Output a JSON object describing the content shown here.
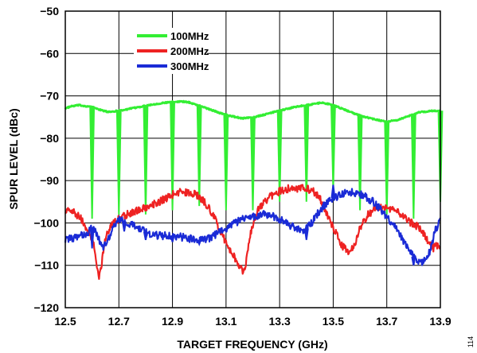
{
  "figure_id": "114",
  "chart_data": {
    "type": "line",
    "xlabel": "TARGET FREQUENCY (GHz)",
    "ylabel": "SPUR LEVEL (dBc)",
    "xlim": [
      12.5,
      13.9
    ],
    "ylim": [
      -120,
      -50
    ],
    "xticks": [
      "12.5",
      "12.7",
      "12.9",
      "13.1",
      "13.3",
      "13.5",
      "13.7",
      "13.9"
    ],
    "yticks": [
      "−50",
      "−60",
      "−70",
      "−80",
      "−90",
      "−100",
      "−110",
      "−120"
    ],
    "grid": true,
    "legend_position": "top-left",
    "series": [
      {
        "name": "100MHz",
        "color": "#33ee33",
        "baseline": [
          [
            12.5,
            -73
          ],
          [
            12.52,
            -72.5
          ],
          [
            12.55,
            -72.2
          ],
          [
            12.6,
            -72.6
          ],
          [
            12.63,
            -73.3
          ],
          [
            12.66,
            -73.8
          ],
          [
            12.7,
            -73.5
          ],
          [
            12.73,
            -73.2
          ],
          [
            12.77,
            -72.7
          ],
          [
            12.81,
            -72.2
          ],
          [
            12.85,
            -71.8
          ],
          [
            12.89,
            -71.5
          ],
          [
            12.93,
            -71.3
          ],
          [
            12.96,
            -71.5
          ],
          [
            13.0,
            -72.3
          ],
          [
            13.04,
            -73.2
          ],
          [
            13.08,
            -74.1
          ],
          [
            13.12,
            -74.8
          ],
          [
            13.16,
            -75.3
          ],
          [
            13.2,
            -75.1
          ],
          [
            13.24,
            -74.5
          ],
          [
            13.28,
            -73.8
          ],
          [
            13.32,
            -73.2
          ],
          [
            13.36,
            -72.6
          ],
          [
            13.4,
            -72.2
          ],
          [
            13.44,
            -71.8
          ],
          [
            13.46,
            -71.6
          ],
          [
            13.5,
            -72.2
          ],
          [
            13.54,
            -73.2
          ],
          [
            13.58,
            -74.2
          ],
          [
            13.62,
            -75.0
          ],
          [
            13.66,
            -75.6
          ],
          [
            13.7,
            -76.1
          ],
          [
            13.74,
            -75.7
          ],
          [
            13.78,
            -74.8
          ],
          [
            13.82,
            -73.9
          ],
          [
            13.86,
            -73.6
          ],
          [
            13.9,
            -73.5
          ]
        ],
        "dips": [
          [
            12.6,
            -99
          ],
          [
            12.7,
            -98
          ],
          [
            12.8,
            -98
          ],
          [
            12.9,
            -97
          ],
          [
            13.0,
            -96
          ],
          [
            13.1,
            -97
          ],
          [
            13.2,
            -97
          ],
          [
            13.3,
            -95
          ],
          [
            13.4,
            -95
          ],
          [
            13.5,
            -92
          ],
          [
            13.6,
            -97
          ],
          [
            13.7,
            -98
          ],
          [
            13.8,
            -99
          ],
          [
            13.9,
            -95
          ]
        ]
      },
      {
        "name": "200MHz",
        "color": "#ee2222",
        "baseline": [
          [
            12.5,
            -97
          ],
          [
            12.53,
            -97.5
          ],
          [
            12.56,
            -99
          ],
          [
            12.59,
            -102.5
          ],
          [
            12.61,
            -106
          ],
          [
            12.62,
            -111
          ],
          [
            12.625,
            -113.5
          ],
          [
            12.635,
            -110
          ],
          [
            12.645,
            -105
          ],
          [
            12.66,
            -102
          ],
          [
            12.68,
            -100
          ],
          [
            12.7,
            -99
          ],
          [
            12.73,
            -98
          ],
          [
            12.77,
            -97
          ],
          [
            12.81,
            -96
          ],
          [
            12.85,
            -95
          ],
          [
            12.88,
            -94
          ],
          [
            12.91,
            -93
          ],
          [
            12.94,
            -92.6
          ],
          [
            12.98,
            -93
          ],
          [
            13.02,
            -95
          ],
          [
            13.05,
            -98
          ],
          [
            13.08,
            -102
          ],
          [
            13.11,
            -106
          ],
          [
            13.14,
            -109
          ],
          [
            13.165,
            -111.5
          ],
          [
            13.175,
            -109
          ],
          [
            13.19,
            -103
          ],
          [
            13.22,
            -97
          ],
          [
            13.26,
            -94
          ],
          [
            13.3,
            -92.5
          ],
          [
            13.34,
            -91.8
          ],
          [
            13.38,
            -91.8
          ],
          [
            13.42,
            -92.2
          ],
          [
            13.45,
            -94
          ],
          [
            13.47,
            -97
          ],
          [
            13.5,
            -101
          ],
          [
            13.53,
            -105
          ],
          [
            13.555,
            -107
          ],
          [
            13.575,
            -106
          ],
          [
            13.6,
            -101
          ],
          [
            13.63,
            -98
          ],
          [
            13.66,
            -96.5
          ],
          [
            13.7,
            -96.3
          ],
          [
            13.74,
            -97.5
          ],
          [
            13.78,
            -99.5
          ],
          [
            13.82,
            -101
          ],
          [
            13.85,
            -104
          ],
          [
            13.87,
            -106
          ],
          [
            13.9,
            -105
          ]
        ],
        "dips": []
      },
      {
        "name": "300MHz",
        "color": "#1a2bd6",
        "baseline": [
          [
            12.5,
            -104
          ],
          [
            12.54,
            -103.5
          ],
          [
            12.58,
            -102.5
          ],
          [
            12.6,
            -101
          ],
          [
            12.62,
            -103
          ],
          [
            12.64,
            -106
          ],
          [
            12.66,
            -104
          ],
          [
            12.68,
            -101
          ],
          [
            12.7,
            -99
          ],
          [
            12.73,
            -100
          ],
          [
            12.77,
            -101
          ],
          [
            12.81,
            -102.5
          ],
          [
            12.85,
            -103
          ],
          [
            12.9,
            -103
          ],
          [
            12.95,
            -103.5
          ],
          [
            13.0,
            -104
          ],
          [
            13.04,
            -103.5
          ],
          [
            13.08,
            -102
          ],
          [
            13.12,
            -100.5
          ],
          [
            13.16,
            -99
          ],
          [
            13.2,
            -98.5
          ],
          [
            13.24,
            -98
          ],
          [
            13.28,
            -98.5
          ],
          [
            13.31,
            -99.5
          ],
          [
            13.35,
            -101
          ],
          [
            13.39,
            -102
          ],
          [
            13.42,
            -100
          ],
          [
            13.45,
            -97
          ],
          [
            13.49,
            -94.5
          ],
          [
            13.53,
            -93.2
          ],
          [
            13.57,
            -92.8
          ],
          [
            13.61,
            -93.5
          ],
          [
            13.65,
            -95
          ],
          [
            13.68,
            -97
          ],
          [
            13.72,
            -100
          ],
          [
            13.76,
            -104
          ],
          [
            13.8,
            -108
          ],
          [
            13.83,
            -109.5
          ],
          [
            13.86,
            -107
          ],
          [
            13.88,
            -102
          ],
          [
            13.9,
            -99
          ]
        ],
        "dips": [
          [
            12.6,
            -106
          ],
          [
            12.72,
            -102
          ],
          [
            12.8,
            -104
          ],
          [
            12.9,
            -104.5
          ],
          [
            13.0,
            -105
          ],
          [
            13.1,
            -102
          ],
          [
            13.4,
            -104
          ],
          [
            13.5,
            -91
          ],
          [
            13.8,
            -110
          ]
        ]
      }
    ]
  }
}
